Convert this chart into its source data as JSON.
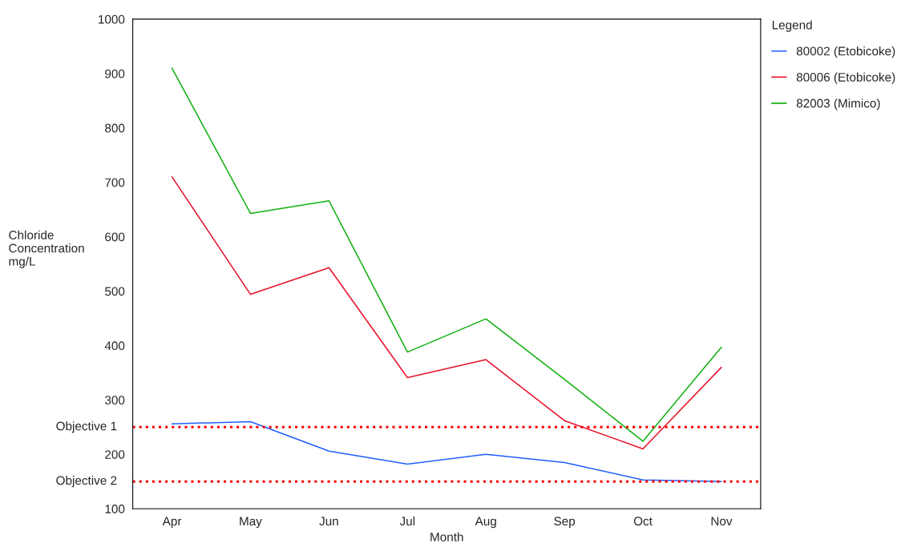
{
  "chart_data": {
    "type": "line",
    "xlabel": "Month",
    "ylabel": "Chloride\nConcentration\nmg/L",
    "legend_title": "Legend",
    "legend": "top right",
    "grid": false,
    "categories": [
      "Apr",
      "May",
      "Jun",
      "Jul",
      "Aug",
      "Sep",
      "Oct",
      "Nov"
    ],
    "series": [
      {
        "name": "80002 (Etobicoke)",
        "color": "#1f5fff",
        "values": [
          256,
          260,
          206,
          182,
          200,
          185,
          153,
          150
        ]
      },
      {
        "name": "80006 (Etobicoke)",
        "color": "#e8102a",
        "values": [
          710,
          494,
          543,
          341,
          374,
          262,
          210,
          360
        ]
      },
      {
        "name": "82003 (Mimico)",
        "color": "#10b010",
        "values": [
          910,
          643,
          666,
          388,
          449,
          338,
          224,
          397
        ]
      }
    ],
    "ylim": [
      100,
      1000
    ],
    "yticks": [
      100,
      200,
      300,
      400,
      500,
      600,
      700,
      800,
      900,
      1000
    ],
    "ref_lines": [
      {
        "axis": "y",
        "value": 250,
        "label": "Objective 1",
        "color": "#ff0000",
        "line_style": "dotted"
      },
      {
        "axis": "y",
        "value": 150,
        "label": "Objective 2",
        "color": "#ff0000",
        "line_style": "dotted"
      }
    ]
  }
}
